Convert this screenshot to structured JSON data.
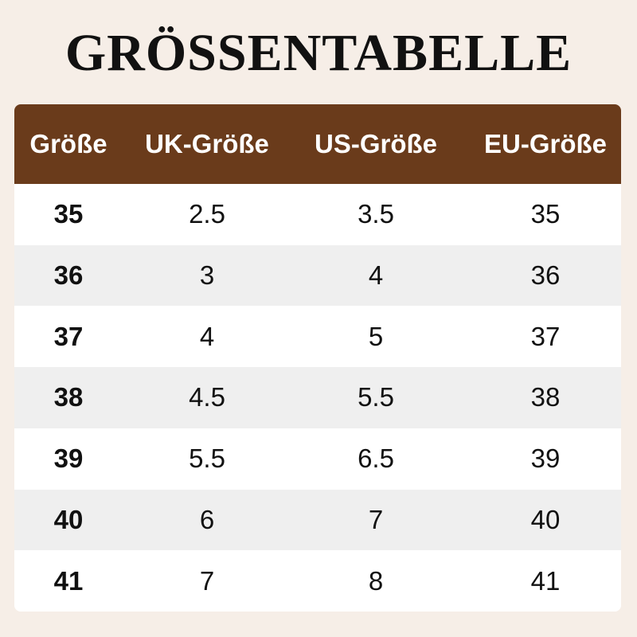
{
  "title": "GRÖSSENTABELLE",
  "table": {
    "header": [
      "Größe",
      "UK-Größe",
      "US-Größe",
      "EU-Größe"
    ],
    "rows": [
      [
        "35",
        "2.5",
        "3.5",
        "35"
      ],
      [
        "36",
        "3",
        "4",
        "36"
      ],
      [
        "37",
        "4",
        "5",
        "37"
      ],
      [
        "38",
        "4.5",
        "5.5",
        "38"
      ],
      [
        "39",
        "5.5",
        "6.5",
        "39"
      ],
      [
        "40",
        "6",
        "7",
        "40"
      ],
      [
        "41",
        "7",
        "8",
        "41"
      ]
    ]
  }
}
